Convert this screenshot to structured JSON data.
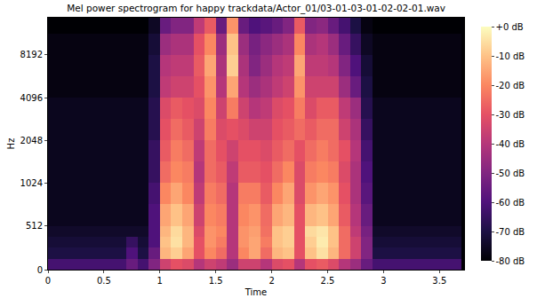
{
  "chart_data": {
    "type": "heatmap",
    "title": "Mel power spectrogram for happy trackdata/Actor_01/03-01-03-01-02-02-01.wav",
    "x_label": "Time",
    "y_label": "Hz",
    "x": [
      0,
      0.1,
      0.2,
      0.3,
      0.4,
      0.5,
      0.6,
      0.7,
      0.8,
      0.9,
      1.0,
      1.1,
      1.2,
      1.3,
      1.4,
      1.5,
      1.6,
      1.7,
      1.8,
      1.9,
      2.0,
      2.1,
      2.2,
      2.3,
      2.4,
      2.5,
      2.6,
      2.7,
      2.8,
      2.9,
      3.0,
      3.1,
      3.2,
      3.3,
      3.4,
      3.5,
      3.6,
      3.7
    ],
    "y": [
      0,
      128,
      256,
      384,
      512,
      768,
      1024,
      1448,
      2048,
      2896,
      4096,
      5793,
      8192,
      11585,
      15000
    ],
    "z": [
      [
        -62,
        -62,
        -62,
        -62,
        -62,
        -62,
        -62,
        -55,
        -62,
        -50,
        -35,
        -30,
        -32,
        -40,
        -35,
        -38,
        -45,
        -35,
        -35,
        -40,
        -32,
        -30,
        -40,
        -30,
        -28,
        -32,
        -40,
        -45,
        -55,
        -62,
        -62,
        -62,
        -62,
        -62,
        -62,
        -62,
        -62
      ],
      [
        -70,
        -70,
        -70,
        -70,
        -70,
        -70,
        -70,
        -60,
        -70,
        -55,
        -12,
        -8,
        -15,
        -30,
        -20,
        -25,
        -40,
        -20,
        -15,
        -25,
        -12,
        -10,
        -30,
        -10,
        -5,
        -12,
        -25,
        -35,
        -50,
        -70,
        -70,
        -70,
        -70,
        -70,
        -70,
        -70,
        -70
      ],
      [
        -72,
        -72,
        -72,
        -72,
        -72,
        -72,
        -72,
        -65,
        -72,
        -60,
        -10,
        -5,
        -12,
        -30,
        -18,
        -22,
        -40,
        -18,
        -15,
        -22,
        -10,
        -8,
        -30,
        -8,
        -3,
        -10,
        -25,
        -35,
        -50,
        -72,
        -72,
        -72,
        -72,
        -72,
        -72,
        -72,
        -72
      ],
      [
        -74,
        -74,
        -74,
        -74,
        -74,
        -74,
        -74,
        -74,
        -74,
        -60,
        -12,
        -6,
        -12,
        -32,
        -18,
        -20,
        -40,
        -18,
        -16,
        -24,
        -10,
        -8,
        -30,
        -6,
        -4,
        -10,
        -25,
        -38,
        -52,
        -74,
        -74,
        -74,
        -74,
        -74,
        -74,
        -74,
        -74
      ],
      [
        -76,
        -76,
        -76,
        -76,
        -76,
        -76,
        -76,
        -76,
        -76,
        -60,
        -15,
        -10,
        -15,
        -35,
        -20,
        -22,
        -40,
        -20,
        -18,
        -25,
        -15,
        -12,
        -30,
        -12,
        -10,
        -15,
        -28,
        -40,
        -55,
        -76,
        -76,
        -76,
        -76,
        -76,
        -76,
        -76,
        -76
      ],
      [
        -76,
        -76,
        -76,
        -76,
        -76,
        -76,
        -76,
        -76,
        -76,
        -62,
        -20,
        -15,
        -20,
        -38,
        -22,
        -25,
        -40,
        -22,
        -22,
        -28,
        -20,
        -15,
        -32,
        -18,
        -15,
        -18,
        -30,
        -42,
        -58,
        -76,
        -76,
        -76,
        -76,
        -76,
        -76,
        -76,
        -76
      ],
      [
        -76,
        -76,
        -76,
        -76,
        -76,
        -76,
        -76,
        -76,
        -76,
        -65,
        -25,
        -20,
        -22,
        -40,
        -25,
        -28,
        -38,
        -28,
        -28,
        -30,
        -25,
        -20,
        -32,
        -22,
        -20,
        -22,
        -32,
        -42,
        -60,
        -76,
        -76,
        -76,
        -76,
        -76,
        -76,
        -76,
        -76
      ],
      [
        -76,
        -76,
        -76,
        -76,
        -76,
        -76,
        -76,
        -76,
        -76,
        -65,
        -28,
        -22,
        -25,
        -38,
        -25,
        -30,
        -35,
        -30,
        -30,
        -32,
        -28,
        -25,
        -30,
        -25,
        -22,
        -25,
        -30,
        -40,
        -62,
        -76,
        -76,
        -76,
        -76,
        -76,
        -76,
        -76,
        -76
      ],
      [
        -76,
        -76,
        -76,
        -76,
        -76,
        -76,
        -76,
        -76,
        -76,
        -68,
        -30,
        -25,
        -28,
        -35,
        -22,
        -32,
        -30,
        -32,
        -35,
        -35,
        -30,
        -28,
        -25,
        -28,
        -25,
        -25,
        -35,
        -42,
        -65,
        -76,
        -76,
        -76,
        -76,
        -76,
        -76,
        -76,
        -76
      ],
      [
        -76,
        -76,
        -76,
        -76,
        -76,
        -76,
        -76,
        -76,
        -76,
        -68,
        -32,
        -28,
        -30,
        -32,
        -20,
        -35,
        -22,
        -35,
        -40,
        -38,
        -32,
        -30,
        -22,
        -32,
        -28,
        -28,
        -38,
        -45,
        -68,
        -76,
        -76,
        -76,
        -76,
        -76,
        -76,
        -76,
        -76
      ],
      [
        -78,
        -78,
        -78,
        -78,
        -78,
        -78,
        -78,
        -78,
        -78,
        -70,
        -38,
        -35,
        -35,
        -30,
        -18,
        -40,
        -15,
        -40,
        -45,
        -42,
        -38,
        -35,
        -18,
        -35,
        -35,
        -35,
        -45,
        -55,
        -70,
        -78,
        -78,
        -78,
        -78,
        -78,
        -78,
        -78,
        -78
      ],
      [
        -78,
        -78,
        -78,
        -78,
        -78,
        -78,
        -78,
        -78,
        -78,
        -70,
        -40,
        -38,
        -38,
        -28,
        -15,
        -42,
        -8,
        -42,
        -50,
        -45,
        -40,
        -38,
        -15,
        -38,
        -38,
        -40,
        -50,
        -60,
        -72,
        -78,
        -78,
        -78,
        -78,
        -78,
        -78,
        -78,
        -78
      ],
      [
        -78,
        -78,
        -78,
        -78,
        -78,
        -78,
        -78,
        -78,
        -78,
        -72,
        -45,
        -42,
        -42,
        -30,
        -20,
        -45,
        -10,
        -45,
        -52,
        -48,
        -45,
        -42,
        -20,
        -42,
        -40,
        -45,
        -55,
        -65,
        -75,
        -78,
        -78,
        -78,
        -78,
        -78,
        -78,
        -78,
        -78
      ],
      [
        -80,
        -80,
        -80,
        -80,
        -80,
        -80,
        -80,
        -80,
        -80,
        -75,
        -55,
        -50,
        -50,
        -38,
        -28,
        -55,
        -18,
        -55,
        -60,
        -58,
        -55,
        -50,
        -28,
        -50,
        -48,
        -55,
        -62,
        -70,
        -78,
        -80,
        -80,
        -80,
        -80,
        -80,
        -80,
        -80,
        -80
      ]
    ],
    "xlim": [
      0,
      3.72
    ],
    "ylim": [
      0,
      15000
    ],
    "xticks": [
      0,
      0.5,
      1,
      1.5,
      2,
      2.5,
      3,
      3.5
    ],
    "yticks": [
      0,
      512,
      1024,
      2048,
      4096,
      8192
    ],
    "colorbar": {
      "range": [
        -80,
        0
      ],
      "ticks": [
        {
          "value": 0,
          "label": "+0 dB"
        },
        {
          "value": -10,
          "label": "-10 dB"
        },
        {
          "value": -20,
          "label": "-20 dB"
        },
        {
          "value": -30,
          "label": "-30 dB"
        },
        {
          "value": -40,
          "label": "-40 dB"
        },
        {
          "value": -50,
          "label": "-50 dB"
        },
        {
          "value": -60,
          "label": "-60 dB"
        },
        {
          "value": -70,
          "label": "-70 dB"
        },
        {
          "value": -80,
          "label": "-80 dB"
        }
      ]
    }
  }
}
